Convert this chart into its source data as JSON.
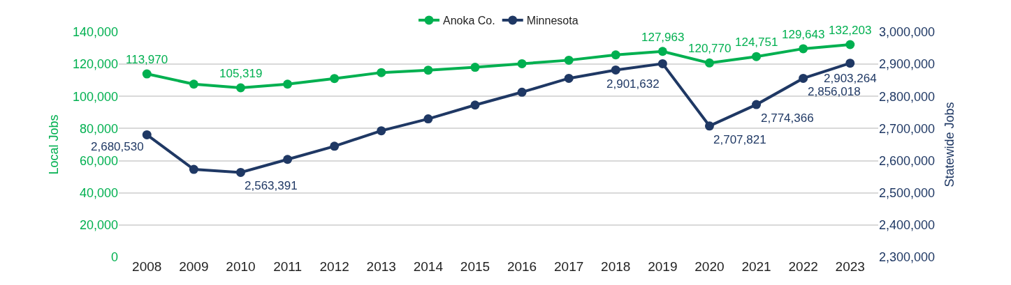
{
  "chart_data": {
    "type": "line",
    "categories": [
      "2008",
      "2009",
      "2010",
      "2011",
      "2012",
      "2013",
      "2014",
      "2015",
      "2016",
      "2017",
      "2018",
      "2019",
      "2020",
      "2021",
      "2022",
      "2023"
    ],
    "series": [
      {
        "name": "Anoka Co.",
        "color": "#00b050",
        "values": [
          113970,
          107600,
          105319,
          107600,
          111100,
          114800,
          116300,
          118100,
          120300,
          122500,
          125800,
          127963,
          120770,
          124751,
          129643,
          132203
        ],
        "value_labels": [
          "113,970",
          null,
          "105,319",
          null,
          null,
          null,
          null,
          null,
          null,
          null,
          null,
          "127,963",
          "120,770",
          "124,751",
          "129,643",
          "132,203"
        ]
      },
      {
        "name": "Minnesota",
        "color": "#1f3864",
        "axis": "y2",
        "values": [
          2680530,
          2573000,
          2563391,
          2604000,
          2645000,
          2693000,
          2730000,
          2773000,
          2813000,
          2856000,
          2882000,
          2901632,
          2707821,
          2774366,
          2856018,
          2903264
        ],
        "value_labels": [
          "2,680,530",
          null,
          "2,563,391",
          null,
          null,
          null,
          null,
          null,
          null,
          null,
          null,
          "2,901,632",
          "2,707,821",
          "2,774,366",
          "2,856,018",
          "2,903,264"
        ]
      }
    ],
    "ylabel": "Local Jobs",
    "y2label": "Statewide Jobs",
    "ylim": [
      0,
      140000
    ],
    "yticks": [
      {
        "value": 0,
        "label": "0"
      },
      {
        "value": 20000,
        "label": "20,000"
      },
      {
        "value": 40000,
        "label": "40,000"
      },
      {
        "value": 60000,
        "label": "60,000"
      },
      {
        "value": 80000,
        "label": "80,000"
      },
      {
        "value": 100000,
        "label": "100,000"
      },
      {
        "value": 120000,
        "label": "120,000"
      },
      {
        "value": 140000,
        "label": "140,000"
      }
    ],
    "y2lim": [
      2300000,
      3000000
    ],
    "y2ticks": [
      {
        "value": 2300000,
        "label": "2,300,000"
      },
      {
        "value": 2400000,
        "label": "2,400,000"
      },
      {
        "value": 2500000,
        "label": "2,500,000"
      },
      {
        "value": 2600000,
        "label": "2,600,000"
      },
      {
        "value": 2700000,
        "label": "2,700,000"
      },
      {
        "value": 2800000,
        "label": "2,800,000"
      },
      {
        "value": 2900000,
        "label": "2,900,000"
      },
      {
        "value": 3000000,
        "label": "3,000,000"
      }
    ],
    "grid": "y",
    "legend": "top",
    "marker": "circle",
    "line_style": "solid"
  }
}
